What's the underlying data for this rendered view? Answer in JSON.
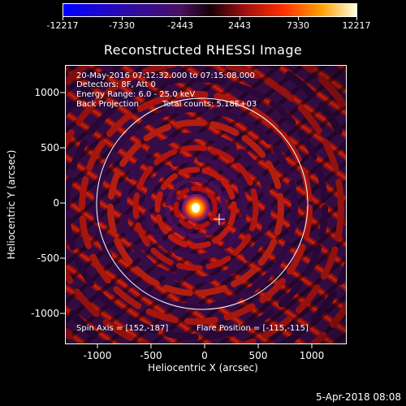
{
  "colorbar": {
    "tick_labels": [
      "-12217",
      "-7330",
      "-2443",
      "2443",
      "7330",
      "12217"
    ]
  },
  "title": "Reconstructed RHESSI Image",
  "annotations": {
    "line1": "20-May-2016 07:12:32.000 to 07:15:08.000",
    "line2": "Detectors: 8F, Att 0",
    "line3": "Energy Range: 6.0 - 25.0 keV",
    "line4_left": "Back Projection",
    "line4_right": "Total counts: 5.18E+03",
    "spin_axis": "Spin Axis = [152,-187]",
    "flare_position": "Flare Position = [-115,-115]"
  },
  "axes": {
    "xlabel": "Heliocentric X (arcsec)",
    "ylabel": "Heliocentric Y (arcsec)",
    "x_ticks": [
      "-1000",
      "-500",
      "0",
      "500",
      "1000"
    ],
    "y_ticks": [
      "1000",
      "500",
      "0",
      "-500",
      "-1000"
    ]
  },
  "footer": {
    "timestamp": "5-Apr-2018 08:08"
  },
  "colors": {
    "background": "#000000",
    "foreground": "#ffffff"
  }
}
